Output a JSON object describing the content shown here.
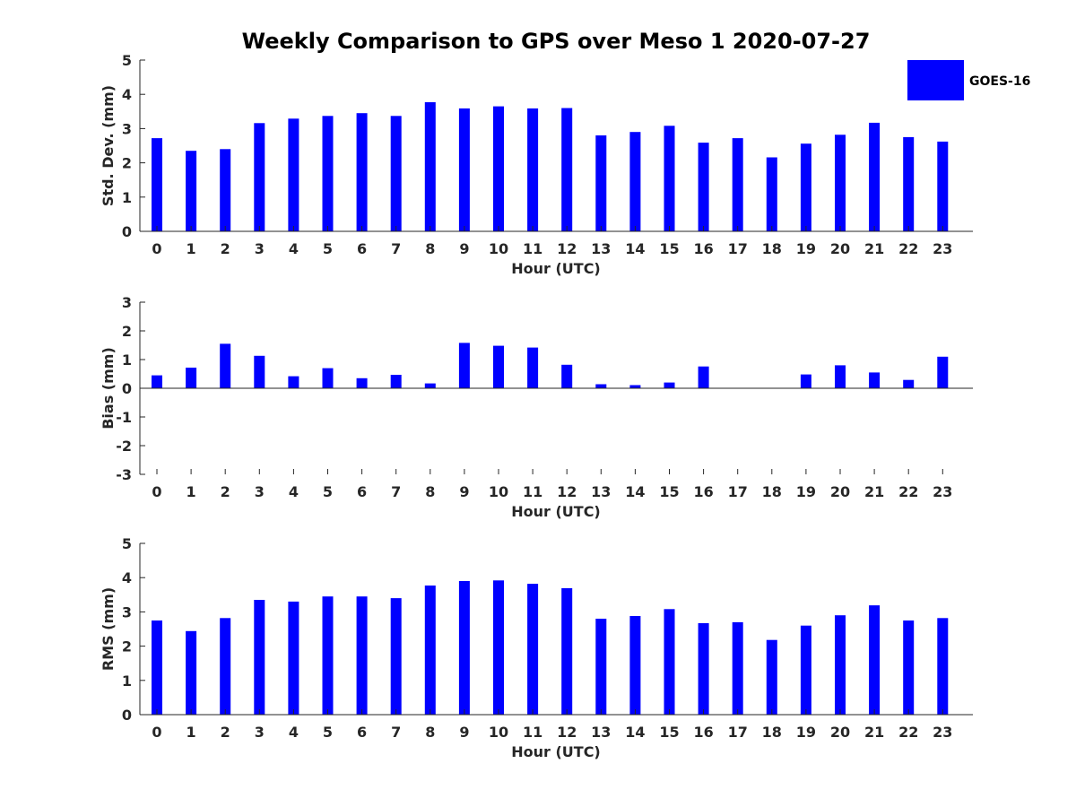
{
  "figure": {
    "title": "Weekly Comparison to GPS over Meso 1 2020-07-27",
    "legend": {
      "label": "GOES-16",
      "color": "#0000ff",
      "placement": "top-right"
    }
  },
  "chart_data": [
    {
      "type": "bar",
      "id": "std",
      "categories": [
        "0",
        "1",
        "2",
        "3",
        "4",
        "5",
        "6",
        "7",
        "8",
        "9",
        "10",
        "11",
        "12",
        "13",
        "14",
        "15",
        "16",
        "17",
        "18",
        "19",
        "20",
        "21",
        "22",
        "23"
      ],
      "values": [
        2.72,
        2.35,
        2.4,
        3.16,
        3.29,
        3.37,
        3.45,
        3.37,
        3.77,
        3.59,
        3.65,
        3.59,
        3.6,
        2.8,
        2.9,
        3.08,
        2.59,
        2.72,
        2.16,
        2.56,
        2.82,
        3.17,
        2.75,
        2.62
      ],
      "xlabel": "Hour (UTC)",
      "ylabel": "Std. Dev. (mm)",
      "ylim": [
        0,
        5
      ],
      "yticks": [
        "0",
        "1",
        "2",
        "3",
        "4",
        "5"
      ],
      "grid": false,
      "color": "#0000ff"
    },
    {
      "type": "bar",
      "id": "bias",
      "categories": [
        "0",
        "1",
        "2",
        "3",
        "4",
        "5",
        "6",
        "7",
        "8",
        "9",
        "10",
        "11",
        "12",
        "13",
        "14",
        "15",
        "16",
        "17",
        "18",
        "19",
        "20",
        "21",
        "22",
        "23"
      ],
      "values": [
        0.45,
        0.72,
        1.55,
        1.13,
        0.42,
        0.7,
        0.35,
        0.47,
        0.17,
        1.58,
        1.48,
        1.42,
        0.82,
        0.14,
        0.11,
        0.2,
        0.76,
        0,
        0,
        0.48,
        0.8,
        0.55,
        0.29,
        1.1
      ],
      "xlabel": "Hour (UTC)",
      "ylabel": "Bias (mm)",
      "ylim": [
        -3,
        3
      ],
      "yticks": [
        "-3",
        "-2",
        "-1",
        "0",
        "1",
        "2",
        "3"
      ],
      "grid": false,
      "color": "#0000ff"
    },
    {
      "type": "bar",
      "id": "rms",
      "categories": [
        "0",
        "1",
        "2",
        "3",
        "4",
        "5",
        "6",
        "7",
        "8",
        "9",
        "10",
        "11",
        "12",
        "13",
        "14",
        "15",
        "16",
        "17",
        "18",
        "19",
        "20",
        "21",
        "22",
        "23"
      ],
      "values": [
        2.75,
        2.44,
        2.82,
        3.35,
        3.3,
        3.45,
        3.45,
        3.4,
        3.77,
        3.9,
        3.92,
        3.82,
        3.69,
        2.8,
        2.88,
        3.08,
        2.67,
        2.7,
        2.18,
        2.6,
        2.9,
        3.19,
        2.75,
        2.82
      ],
      "xlabel": "Hour (UTC)",
      "ylabel": "RMS (mm)",
      "ylim": [
        0,
        5
      ],
      "yticks": [
        "0",
        "1",
        "2",
        "3",
        "4",
        "5"
      ],
      "grid": false,
      "color": "#0000ff"
    }
  ]
}
